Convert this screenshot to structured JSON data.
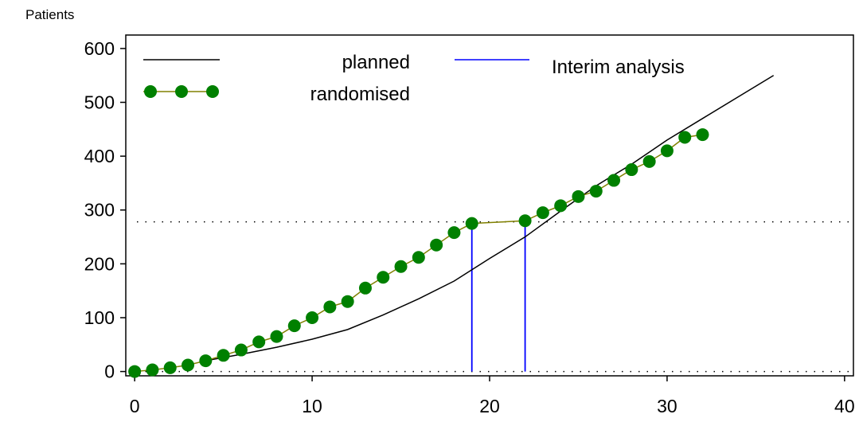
{
  "chart_data": {
    "type": "line",
    "title": "",
    "xlabel": "",
    "ylabel": "Patients",
    "xlim": [
      -0.5,
      40.5
    ],
    "ylim": [
      -8,
      625
    ],
    "xticks": [
      0,
      10,
      20,
      30,
      40
    ],
    "yticks": [
      0,
      100,
      200,
      300,
      400,
      500,
      600
    ],
    "grid": false,
    "legend_position": "top",
    "colors": {
      "planned": "#000000",
      "randomised_line": "#808000",
      "randomised_marker": "#008000",
      "interim": "#0000ff",
      "reference": "#000000"
    },
    "series": [
      {
        "name": "planned",
        "style": "line",
        "x": [
          4,
          6,
          8,
          10,
          12,
          14,
          16,
          18,
          20,
          22,
          24,
          26,
          28,
          30,
          32,
          34,
          36
        ],
        "y": [
          20,
          32,
          45,
          60,
          78,
          105,
          135,
          168,
          210,
          250,
          298,
          345,
          385,
          430,
          470,
          510,
          550
        ]
      },
      {
        "name": "randomised",
        "style": "line+markers",
        "x": [
          0,
          1,
          2,
          3,
          4,
          5,
          6,
          7,
          8,
          9,
          10,
          11,
          12,
          13,
          14,
          15,
          16,
          17,
          18,
          19,
          22,
          23,
          24,
          25,
          26,
          27,
          28,
          29,
          30,
          31,
          32
        ],
        "y": [
          0,
          3,
          7,
          12,
          20,
          30,
          40,
          55,
          65,
          85,
          100,
          120,
          130,
          155,
          175,
          195,
          212,
          235,
          258,
          275,
          280,
          295,
          308,
          325,
          335,
          355,
          375,
          390,
          410,
          435,
          440
        ]
      }
    ],
    "interim_analysis": {
      "name": "Interim analysis",
      "x": [
        19,
        22
      ]
    },
    "reference_lines": {
      "y": [
        0,
        278
      ]
    }
  }
}
